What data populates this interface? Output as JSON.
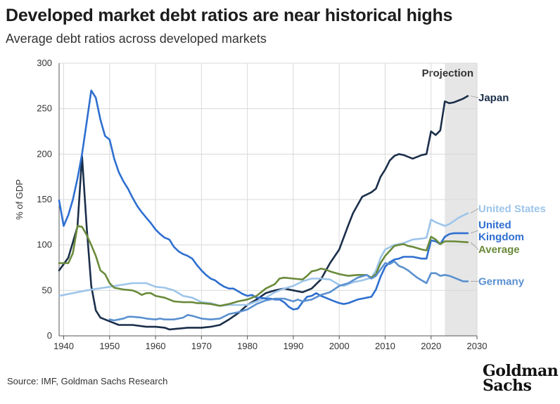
{
  "header": {
    "title": "Developed market debt ratios are near historical highs",
    "subtitle": "Average debt ratios across developed markets"
  },
  "footer": {
    "source": "Source: IMF, Goldman Sachs Research",
    "logo_line1": "Goldman",
    "logo_line2": "Sachs"
  },
  "chart_data": {
    "type": "line",
    "title": "Developed market debt ratios are near historical highs",
    "subtitle": "Average debt ratios across developed markets",
    "xlabel": "",
    "ylabel": "% of GDP",
    "xlim": [
      1939,
      2030
    ],
    "ylim": [
      0,
      300
    ],
    "xticks": [
      1940,
      1950,
      1960,
      1970,
      1980,
      1990,
      2000,
      2010,
      2020,
      2030
    ],
    "yticks": [
      0,
      50,
      100,
      150,
      200,
      250,
      300
    ],
    "grid": true,
    "projection": {
      "label": "Projection",
      "start": 2023,
      "end": 2030
    },
    "series": [
      {
        "name": "Japan",
        "color": "#1b2f4a",
        "label_y": 262,
        "points": [
          [
            1939,
            72
          ],
          [
            1941,
            86
          ],
          [
            1943,
            120
          ],
          [
            1944,
            198
          ],
          [
            1945,
            120
          ],
          [
            1946,
            55
          ],
          [
            1947,
            28
          ],
          [
            1948,
            20
          ],
          [
            1950,
            16
          ],
          [
            1952,
            12
          ],
          [
            1955,
            12
          ],
          [
            1958,
            10
          ],
          [
            1960,
            10
          ],
          [
            1962,
            9
          ],
          [
            1963,
            7
          ],
          [
            1965,
            8
          ],
          [
            1967,
            9
          ],
          [
            1970,
            9
          ],
          [
            1972,
            10
          ],
          [
            1974,
            12
          ],
          [
            1976,
            18
          ],
          [
            1978,
            25
          ],
          [
            1980,
            34
          ],
          [
            1982,
            40
          ],
          [
            1984,
            47
          ],
          [
            1986,
            50
          ],
          [
            1988,
            52
          ],
          [
            1990,
            50
          ],
          [
            1992,
            48
          ],
          [
            1994,
            52
          ],
          [
            1996,
            62
          ],
          [
            1998,
            80
          ],
          [
            2000,
            95
          ],
          [
            2002,
            122
          ],
          [
            2003,
            135
          ],
          [
            2005,
            153
          ],
          [
            2007,
            158
          ],
          [
            2008,
            162
          ],
          [
            2009,
            175
          ],
          [
            2010,
            183
          ],
          [
            2011,
            193
          ],
          [
            2012,
            198
          ],
          [
            2013,
            200
          ],
          [
            2014,
            199
          ],
          [
            2015,
            197
          ],
          [
            2016,
            195
          ],
          [
            2018,
            199
          ],
          [
            2019,
            200
          ],
          [
            2020,
            225
          ],
          [
            2021,
            221
          ],
          [
            2022,
            226
          ],
          [
            2023,
            258
          ],
          [
            2024,
            256
          ],
          [
            2025,
            257
          ],
          [
            2026,
            259
          ],
          [
            2027,
            261
          ],
          [
            2028,
            264
          ]
        ]
      },
      {
        "name": "United States",
        "color": "#9dc5ea",
        "label_y": 140,
        "points": [
          [
            1939,
            44
          ],
          [
            1945,
            50
          ],
          [
            1950,
            54
          ],
          [
            1955,
            58
          ],
          [
            1957,
            58
          ],
          [
            1958,
            58
          ],
          [
            1960,
            54
          ],
          [
            1962,
            53
          ],
          [
            1964,
            50
          ],
          [
            1966,
            44
          ],
          [
            1968,
            42
          ],
          [
            1970,
            37
          ],
          [
            1972,
            36
          ],
          [
            1974,
            33
          ],
          [
            1976,
            34
          ],
          [
            1978,
            34
          ],
          [
            1980,
            34
          ],
          [
            1982,
            38
          ],
          [
            1984,
            42
          ],
          [
            1986,
            48
          ],
          [
            1988,
            52
          ],
          [
            1990,
            55
          ],
          [
            1992,
            60
          ],
          [
            1994,
            63
          ],
          [
            1996,
            63
          ],
          [
            1998,
            62
          ],
          [
            2000,
            56
          ],
          [
            2001,
            55
          ],
          [
            2003,
            59
          ],
          [
            2005,
            61
          ],
          [
            2007,
            64
          ],
          [
            2008,
            72
          ],
          [
            2009,
            86
          ],
          [
            2010,
            95
          ],
          [
            2012,
            100
          ],
          [
            2014,
            102
          ],
          [
            2015,
            104
          ],
          [
            2016,
            106
          ],
          [
            2018,
            107
          ],
          [
            2019,
            108
          ],
          [
            2020,
            128
          ],
          [
            2021,
            125
          ],
          [
            2023,
            121
          ],
          [
            2024,
            123
          ],
          [
            2026,
            130
          ],
          [
            2028,
            135
          ]
        ]
      },
      {
        "name": "United Kingdom",
        "color": "#2e6fd0",
        "label_y": 116,
        "points": [
          [
            1939,
            149
          ],
          [
            1940,
            121
          ],
          [
            1941,
            133
          ],
          [
            1942,
            150
          ],
          [
            1943,
            173
          ],
          [
            1944,
            200
          ],
          [
            1945,
            235
          ],
          [
            1946,
            270
          ],
          [
            1947,
            262
          ],
          [
            1948,
            238
          ],
          [
            1949,
            220
          ],
          [
            1950,
            216
          ],
          [
            1951,
            195
          ],
          [
            1952,
            180
          ],
          [
            1953,
            170
          ],
          [
            1954,
            162
          ],
          [
            1955,
            152
          ],
          [
            1956,
            143
          ],
          [
            1957,
            136
          ],
          [
            1958,
            130
          ],
          [
            1959,
            124
          ],
          [
            1960,
            117
          ],
          [
            1961,
            112
          ],
          [
            1962,
            108
          ],
          [
            1963,
            106
          ],
          [
            1964,
            98
          ],
          [
            1965,
            93
          ],
          [
            1966,
            90
          ],
          [
            1967,
            88
          ],
          [
            1968,
            85
          ],
          [
            1969,
            78
          ],
          [
            1970,
            72
          ],
          [
            1971,
            67
          ],
          [
            1972,
            63
          ],
          [
            1973,
            61
          ],
          [
            1974,
            57
          ],
          [
            1975,
            54
          ],
          [
            1976,
            52
          ],
          [
            1977,
            52
          ],
          [
            1978,
            49
          ],
          [
            1979,
            46
          ],
          [
            1980,
            44
          ],
          [
            1981,
            45
          ],
          [
            1982,
            42
          ],
          [
            1983,
            42
          ],
          [
            1984,
            41
          ],
          [
            1985,
            41
          ],
          [
            1986,
            40
          ],
          [
            1987,
            40
          ],
          [
            1988,
            37
          ],
          [
            1989,
            32
          ],
          [
            1990,
            29
          ],
          [
            1991,
            30
          ],
          [
            1992,
            37
          ],
          [
            1993,
            43
          ],
          [
            1994,
            44
          ],
          [
            1995,
            47
          ],
          [
            1996,
            44
          ],
          [
            1997,
            42
          ],
          [
            1998,
            40
          ],
          [
            1999,
            38
          ],
          [
            2000,
            36
          ],
          [
            2001,
            35
          ],
          [
            2002,
            36
          ],
          [
            2003,
            38
          ],
          [
            2004,
            40
          ],
          [
            2005,
            41
          ],
          [
            2006,
            42
          ],
          [
            2007,
            43
          ],
          [
            2008,
            51
          ],
          [
            2009,
            65
          ],
          [
            2010,
            76
          ],
          [
            2011,
            81
          ],
          [
            2012,
            84
          ],
          [
            2013,
            85
          ],
          [
            2014,
            87
          ],
          [
            2015,
            87
          ],
          [
            2016,
            87
          ],
          [
            2017,
            86
          ],
          [
            2018,
            85
          ],
          [
            2019,
            85
          ],
          [
            2020,
            105
          ],
          [
            2021,
            104
          ],
          [
            2022,
            101
          ],
          [
            2023,
            109
          ],
          [
            2024,
            112
          ],
          [
            2025,
            113
          ],
          [
            2026,
            113
          ],
          [
            2027,
            113
          ],
          [
            2028,
            113
          ]
        ]
      },
      {
        "name": "Average",
        "color": "#6a8a3a",
        "label_y": 95,
        "points": [
          [
            1939,
            80
          ],
          [
            1941,
            80
          ],
          [
            1942,
            91
          ],
          [
            1943,
            121
          ],
          [
            1944,
            120
          ],
          [
            1945,
            111
          ],
          [
            1946,
            100
          ],
          [
            1947,
            88
          ],
          [
            1948,
            72
          ],
          [
            1949,
            68
          ],
          [
            1950,
            58
          ],
          [
            1951,
            53
          ],
          [
            1953,
            51
          ],
          [
            1955,
            50
          ],
          [
            1956,
            48
          ],
          [
            1957,
            45
          ],
          [
            1958,
            47
          ],
          [
            1959,
            47
          ],
          [
            1960,
            44
          ],
          [
            1962,
            42
          ],
          [
            1964,
            38
          ],
          [
            1966,
            37
          ],
          [
            1968,
            37
          ],
          [
            1969,
            36
          ],
          [
            1970,
            36
          ],
          [
            1972,
            35
          ],
          [
            1974,
            33
          ],
          [
            1976,
            35
          ],
          [
            1978,
            38
          ],
          [
            1980,
            40
          ],
          [
            1982,
            44
          ],
          [
            1984,
            52
          ],
          [
            1986,
            57
          ],
          [
            1987,
            63
          ],
          [
            1988,
            64
          ],
          [
            1990,
            63
          ],
          [
            1992,
            62
          ],
          [
            1993,
            66
          ],
          [
            1994,
            71
          ],
          [
            1995,
            72
          ],
          [
            1996,
            74
          ],
          [
            1997,
            73
          ],
          [
            1998,
            71
          ],
          [
            2000,
            68
          ],
          [
            2002,
            66
          ],
          [
            2004,
            67
          ],
          [
            2006,
            67
          ],
          [
            2007,
            64
          ],
          [
            2008,
            68
          ],
          [
            2009,
            80
          ],
          [
            2010,
            88
          ],
          [
            2012,
            99
          ],
          [
            2014,
            101
          ],
          [
            2015,
            99
          ],
          [
            2016,
            98
          ],
          [
            2018,
            95
          ],
          [
            2019,
            94
          ],
          [
            2020,
            109
          ],
          [
            2021,
            106
          ],
          [
            2022,
            101
          ],
          [
            2023,
            104
          ],
          [
            2025,
            104
          ],
          [
            2028,
            103
          ]
        ]
      },
      {
        "name": "Germany",
        "color": "#5a90d0",
        "label_y": 60,
        "points": [
          [
            1950,
            18
          ],
          [
            1951,
            17
          ],
          [
            1952,
            18
          ],
          [
            1953,
            19
          ],
          [
            1954,
            21
          ],
          [
            1955,
            21
          ],
          [
            1957,
            20
          ],
          [
            1958,
            19
          ],
          [
            1960,
            18
          ],
          [
            1961,
            19
          ],
          [
            1962,
            18
          ],
          [
            1964,
            18
          ],
          [
            1966,
            20
          ],
          [
            1967,
            23
          ],
          [
            1968,
            22
          ],
          [
            1970,
            19
          ],
          [
            1972,
            18
          ],
          [
            1974,
            19
          ],
          [
            1976,
            24
          ],
          [
            1978,
            26
          ],
          [
            1980,
            29
          ],
          [
            1982,
            35
          ],
          [
            1984,
            39
          ],
          [
            1986,
            41
          ],
          [
            1988,
            41
          ],
          [
            1990,
            38
          ],
          [
            1991,
            40
          ],
          [
            1992,
            38
          ],
          [
            1994,
            40
          ],
          [
            1996,
            45
          ],
          [
            1998,
            48
          ],
          [
            2000,
            55
          ],
          [
            2002,
            58
          ],
          [
            2004,
            64
          ],
          [
            2006,
            67
          ],
          [
            2007,
            63
          ],
          [
            2008,
            66
          ],
          [
            2009,
            73
          ],
          [
            2010,
            80
          ],
          [
            2011,
            79
          ],
          [
            2012,
            82
          ],
          [
            2013,
            77
          ],
          [
            2014,
            75
          ],
          [
            2015,
            72
          ],
          [
            2016,
            68
          ],
          [
            2017,
            64
          ],
          [
            2018,
            61
          ],
          [
            2019,
            58
          ],
          [
            2020,
            69
          ],
          [
            2021,
            69
          ],
          [
            2022,
            66
          ],
          [
            2023,
            67
          ],
          [
            2024,
            66
          ],
          [
            2025,
            64
          ],
          [
            2026,
            62
          ],
          [
            2027,
            60
          ],
          [
            2028,
            60
          ]
        ]
      }
    ]
  }
}
